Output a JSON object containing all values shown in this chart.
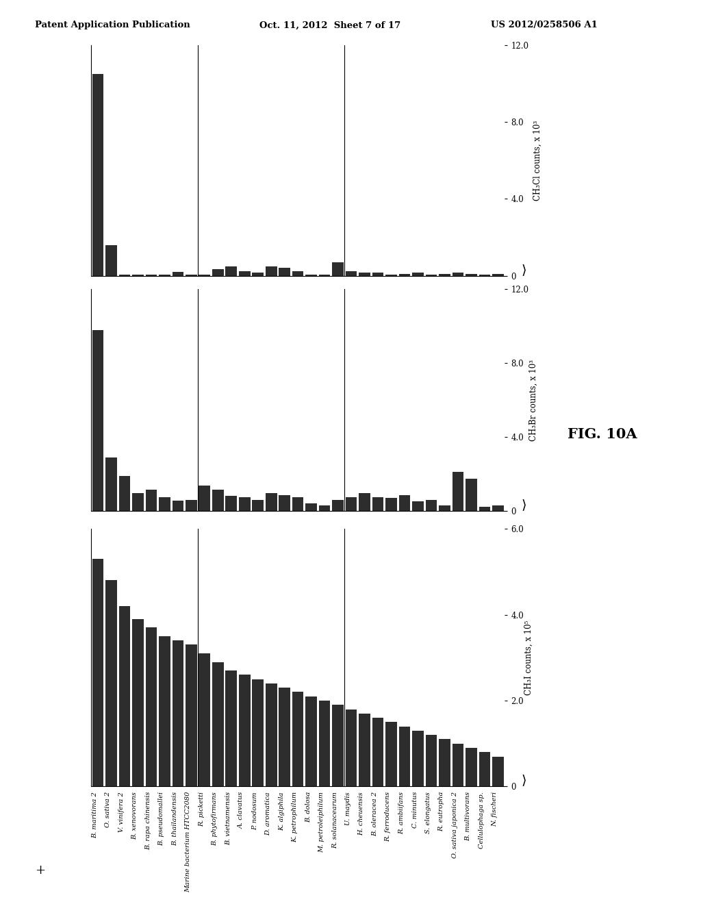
{
  "species": [
    "B. maritima 2",
    "O. sativa 2",
    "V. vinifera 2",
    "B. xenovorans",
    "B. rapa chinensis",
    "B. pseudomallei",
    "B. thailandensis",
    "Marine bacterium HTCC2080",
    "R. picketti",
    "B. phytofirmans",
    "B. vietnamensis",
    "A. clavatus",
    "P. nodosum",
    "D. aromatica",
    "K. algiphila",
    "K. petrophilum",
    "B. dolosa",
    "M. petroleiphilum",
    "R. solanacearum",
    "U. maydis",
    "H. cheuensis",
    "B. oleracea 2",
    "R. ferroducens",
    "R. ambiifans",
    "C. minutus",
    "S. elongatus",
    "R. eutropha",
    "O. sativa japonica 2",
    "B. multivorans",
    "Cellulophaga sp.",
    "N. fischeri"
  ],
  "ch3cl": [
    10500,
    1600,
    50,
    50,
    50,
    50,
    200,
    50,
    50,
    350,
    500,
    250,
    150,
    500,
    400,
    250,
    50,
    50,
    700,
    250,
    150,
    150,
    50,
    100,
    150,
    50,
    100,
    150,
    100,
    50,
    100
  ],
  "ch3br": [
    9800,
    2900,
    1900,
    950,
    1150,
    750,
    550,
    600,
    1350,
    1150,
    800,
    750,
    600,
    950,
    850,
    750,
    400,
    300,
    600,
    750,
    950,
    750,
    700,
    850,
    500,
    600,
    300,
    2100,
    1750,
    200,
    280
  ],
  "ch3i": [
    530000,
    480000,
    420000,
    390000,
    370000,
    350000,
    340000,
    330000,
    310000,
    290000,
    270000,
    260000,
    250000,
    240000,
    230000,
    220000,
    210000,
    200000,
    190000,
    180000,
    170000,
    160000,
    150000,
    140000,
    130000,
    120000,
    110000,
    100000,
    90000,
    80000,
    70000
  ],
  "ch3cl_ylim": [
    0,
    12000
  ],
  "ch3br_ylim": [
    0,
    12000
  ],
  "ch3i_ylim": [
    0,
    600000
  ],
  "ch3cl_yticks": [
    0,
    4000,
    8000,
    12000
  ],
  "ch3cl_ytick_labels": [
    "0",
    "4.0",
    "8.0",
    "12.0"
  ],
  "ch3br_yticks": [
    0,
    4000,
    8000,
    12000
  ],
  "ch3br_ytick_labels": [
    "0",
    "4.0",
    "8.0",
    "12.0"
  ],
  "ch3i_yticks": [
    0,
    200000,
    400000,
    600000
  ],
  "ch3i_ytick_labels": [
    "0",
    "2.0",
    "4.0",
    "6.0"
  ],
  "bar_color": "#2d2d2d",
  "background_color": "#ffffff",
  "vline_x": [
    7.5,
    18.5
  ],
  "ylabel_ch3cl": "CH₃Cl counts, x 10³",
  "ylabel_ch3br": "CH₃Br counts, x 10³",
  "ylabel_ch3i": "CH₃I counts, x 10⁵",
  "fig_label": "FIG. 10A",
  "header_left": "Patent Application Publication",
  "header_mid": "Oct. 11, 2012  Sheet 7 of 17",
  "header_right": "US 2012/0258506 A1"
}
